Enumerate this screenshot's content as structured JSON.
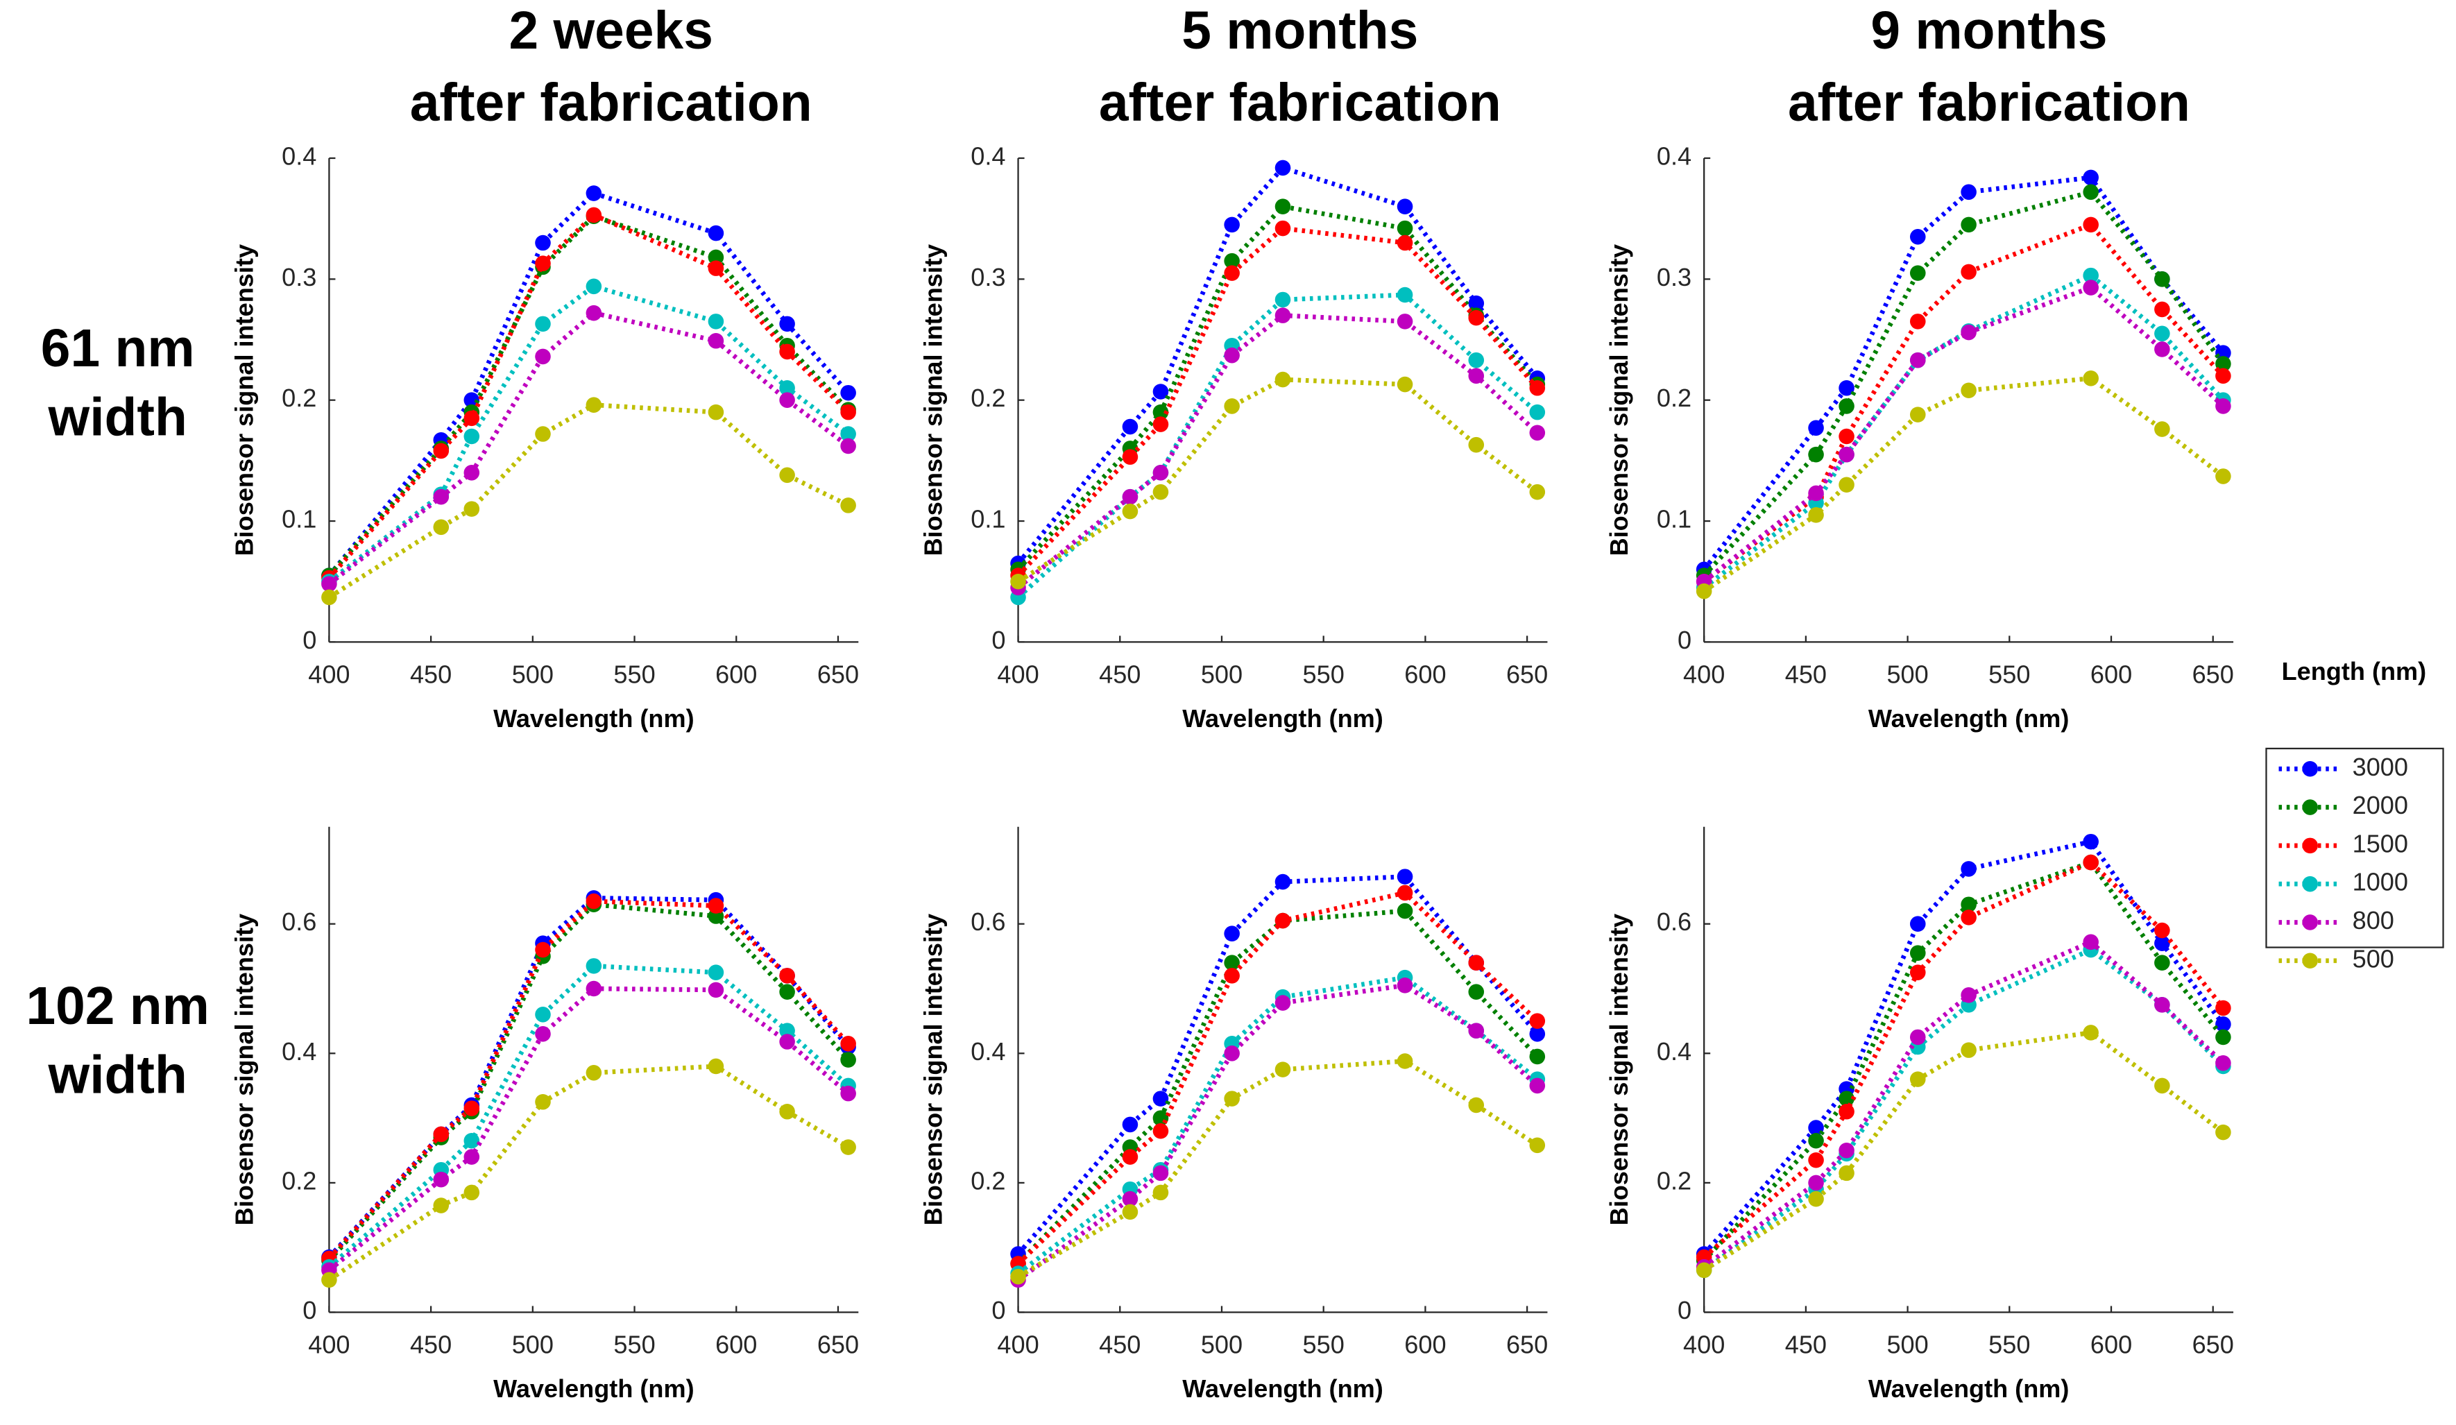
{
  "column_titles": [
    [
      "2 weeks",
      "after fabrication"
    ],
    [
      "5 months",
      "after fabrication"
    ],
    [
      "9 months",
      "after fabrication"
    ]
  ],
  "row_labels": [
    [
      "61 nm",
      "width"
    ],
    [
      "102 nm",
      "width"
    ]
  ],
  "legend": {
    "title": "Length (nm)",
    "position": "right"
  },
  "chart_data": [
    {
      "type": "line",
      "x_label": "Wavelength (nm)",
      "y_label": "Biosensor signal intensity",
      "x": [
        400,
        455,
        470,
        505,
        530,
        590,
        625,
        655
      ],
      "xlim": [
        400,
        660
      ],
      "xticks": [
        400,
        450,
        500,
        550,
        600,
        650
      ],
      "ylim": [
        0,
        0.4
      ],
      "yticks": [
        0,
        0.1,
        0.2,
        0.3,
        0.4
      ],
      "series": [
        {
          "name": "3000",
          "color": "#0000ff",
          "values": [
            0.055,
            0.167,
            0.2,
            0.33,
            0.371,
            0.338,
            0.263,
            0.206
          ]
        },
        {
          "name": "2000",
          "color": "#008000",
          "values": [
            0.055,
            0.16,
            0.19,
            0.31,
            0.352,
            0.318,
            0.245,
            0.192
          ]
        },
        {
          "name": "1500",
          "color": "#ff0000",
          "values": [
            0.053,
            0.158,
            0.185,
            0.313,
            0.353,
            0.309,
            0.24,
            0.19
          ]
        },
        {
          "name": "1000",
          "color": "#00bfbf",
          "values": [
            0.05,
            0.122,
            0.17,
            0.263,
            0.294,
            0.265,
            0.21,
            0.172
          ]
        },
        {
          "name": "800",
          "color": "#bf00bf",
          "values": [
            0.048,
            0.12,
            0.14,
            0.236,
            0.272,
            0.249,
            0.2,
            0.162
          ]
        },
        {
          "name": "500",
          "color": "#bfbf00",
          "values": [
            0.037,
            0.095,
            0.11,
            0.172,
            0.196,
            0.19,
            0.138,
            0.113
          ]
        }
      ]
    },
    {
      "type": "line",
      "x_label": "Wavelength (nm)",
      "y_label": "Biosensor signal intensity",
      "x": [
        400,
        455,
        470,
        505,
        530,
        590,
        625,
        655
      ],
      "xlim": [
        400,
        660
      ],
      "xticks": [
        400,
        450,
        500,
        550,
        600,
        650
      ],
      "ylim": [
        0,
        0.4
      ],
      "yticks": [
        0,
        0.1,
        0.2,
        0.3,
        0.4
      ],
      "series": [
        {
          "values": [
            0.065,
            0.178,
            0.207,
            0.345,
            0.392,
            0.36,
            0.28,
            0.218
          ]
        },
        {
          "values": [
            0.06,
            0.16,
            0.19,
            0.315,
            0.36,
            0.342,
            0.27,
            0.213
          ]
        },
        {
          "values": [
            0.055,
            0.153,
            0.18,
            0.305,
            0.342,
            0.33,
            0.268,
            0.21
          ]
        },
        {
          "values": [
            0.037,
            0.12,
            0.14,
            0.245,
            0.283,
            0.287,
            0.233,
            0.19
          ]
        },
        {
          "values": [
            0.045,
            0.12,
            0.14,
            0.237,
            0.27,
            0.265,
            0.22,
            0.173
          ]
        },
        {
          "values": [
            0.05,
            0.108,
            0.124,
            0.195,
            0.217,
            0.213,
            0.163,
            0.124
          ]
        }
      ]
    },
    {
      "type": "line",
      "x_label": "Wavelength (nm)",
      "y_label": "Biosensor signal intensity",
      "x": [
        400,
        455,
        470,
        505,
        530,
        590,
        625,
        655
      ],
      "xlim": [
        400,
        660
      ],
      "xticks": [
        400,
        450,
        500,
        550,
        600,
        650
      ],
      "ylim": [
        0,
        0.4
      ],
      "yticks": [
        0,
        0.1,
        0.2,
        0.3,
        0.4
      ],
      "series": [
        {
          "values": [
            0.06,
            0.177,
            0.21,
            0.335,
            0.372,
            0.384,
            0.3,
            0.239
          ]
        },
        {
          "values": [
            0.055,
            0.155,
            0.195,
            0.305,
            0.345,
            0.372,
            0.3,
            0.23
          ]
        },
        {
          "values": [
            0.05,
            0.12,
            0.17,
            0.265,
            0.306,
            0.345,
            0.275,
            0.22
          ]
        },
        {
          "values": [
            0.045,
            0.115,
            0.155,
            0.233,
            0.257,
            0.303,
            0.255,
            0.2
          ]
        },
        {
          "values": [
            0.05,
            0.123,
            0.155,
            0.233,
            0.256,
            0.293,
            0.242,
            0.195
          ]
        },
        {
          "values": [
            0.042,
            0.105,
            0.13,
            0.188,
            0.208,
            0.218,
            0.176,
            0.137
          ]
        }
      ]
    },
    {
      "type": "line",
      "x_label": "Wavelength (nm)",
      "y_label": "Biosensor signal intensity",
      "x": [
        400,
        455,
        470,
        505,
        530,
        590,
        625,
        655
      ],
      "xlim": [
        400,
        660
      ],
      "xticks": [
        400,
        450,
        500,
        550,
        600,
        650
      ],
      "ylim": [
        0,
        0.75
      ],
      "yticks": [
        0,
        0.2,
        0.4,
        0.6
      ],
      "series": [
        {
          "values": [
            0.085,
            0.275,
            0.32,
            0.57,
            0.64,
            0.637,
            0.52,
            0.41
          ]
        },
        {
          "values": [
            0.08,
            0.27,
            0.31,
            0.55,
            0.63,
            0.612,
            0.495,
            0.39
          ]
        },
        {
          "values": [
            0.083,
            0.275,
            0.315,
            0.56,
            0.635,
            0.628,
            0.52,
            0.415
          ]
        },
        {
          "values": [
            0.07,
            0.22,
            0.265,
            0.46,
            0.535,
            0.525,
            0.435,
            0.35
          ]
        },
        {
          "values": [
            0.065,
            0.205,
            0.24,
            0.43,
            0.5,
            0.498,
            0.418,
            0.338
          ]
        },
        {
          "values": [
            0.05,
            0.165,
            0.185,
            0.325,
            0.37,
            0.38,
            0.31,
            0.255
          ]
        }
      ]
    },
    {
      "type": "line",
      "x_label": "Wavelength (nm)",
      "y_label": "Biosensor signal intensity",
      "x": [
        400,
        455,
        470,
        505,
        530,
        590,
        625,
        655
      ],
      "xlim": [
        400,
        660
      ],
      "xticks": [
        400,
        450,
        500,
        550,
        600,
        650
      ],
      "ylim": [
        0,
        0.75
      ],
      "yticks": [
        0,
        0.2,
        0.4,
        0.6
      ],
      "series": [
        {
          "values": [
            0.09,
            0.29,
            0.33,
            0.585,
            0.665,
            0.673,
            0.54,
            0.43
          ]
        },
        {
          "values": [
            0.075,
            0.255,
            0.3,
            0.54,
            0.605,
            0.62,
            0.495,
            0.395
          ]
        },
        {
          "values": [
            0.075,
            0.24,
            0.28,
            0.52,
            0.605,
            0.648,
            0.54,
            0.45
          ]
        },
        {
          "values": [
            0.06,
            0.19,
            0.22,
            0.415,
            0.487,
            0.517,
            0.435,
            0.36
          ]
        },
        {
          "values": [
            0.05,
            0.175,
            0.215,
            0.4,
            0.478,
            0.505,
            0.435,
            0.35
          ]
        },
        {
          "values": [
            0.055,
            0.155,
            0.185,
            0.33,
            0.375,
            0.388,
            0.32,
            0.258
          ]
        }
      ]
    },
    {
      "type": "line",
      "x_label": "Wavelength (nm)",
      "y_label": "Biosensor signal intensity",
      "x": [
        400,
        455,
        470,
        505,
        530,
        590,
        625,
        655
      ],
      "xlim": [
        400,
        660
      ],
      "xticks": [
        400,
        450,
        500,
        550,
        600,
        650
      ],
      "ylim": [
        0,
        0.75
      ],
      "yticks": [
        0,
        0.2,
        0.4,
        0.6
      ],
      "series": [
        {
          "values": [
            0.09,
            0.285,
            0.345,
            0.6,
            0.685,
            0.727,
            0.57,
            0.445
          ]
        },
        {
          "values": [
            0.08,
            0.265,
            0.33,
            0.555,
            0.63,
            0.695,
            0.54,
            0.425
          ]
        },
        {
          "values": [
            0.085,
            0.235,
            0.31,
            0.525,
            0.61,
            0.695,
            0.59,
            0.47
          ]
        },
        {
          "values": [
            0.065,
            0.19,
            0.245,
            0.41,
            0.475,
            0.56,
            0.475,
            0.38
          ]
        },
        {
          "values": [
            0.07,
            0.2,
            0.25,
            0.425,
            0.49,
            0.572,
            0.475,
            0.385
          ]
        },
        {
          "values": [
            0.065,
            0.175,
            0.215,
            0.36,
            0.405,
            0.432,
            0.35,
            0.278
          ]
        }
      ]
    }
  ]
}
